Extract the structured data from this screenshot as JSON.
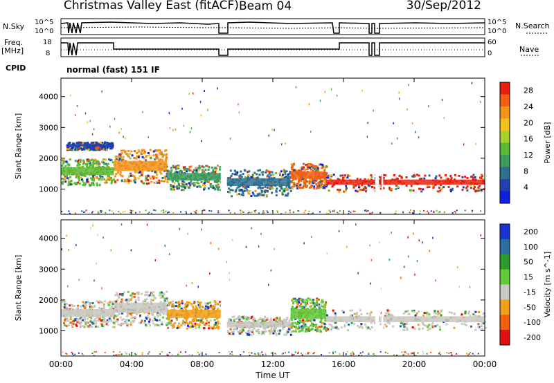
{
  "header": {
    "title": "Christmas Valley East (fitACF)",
    "beam": "Beam 04",
    "date": "30/Sep/2012"
  },
  "panels": {
    "nsky_label": "N.Sky",
    "nsky_ticks": [
      "10^5",
      "10^0"
    ],
    "nsearch_label": "N.Search",
    "nsearch_ticks": [
      "10^5",
      "10^0"
    ],
    "freq_label": "Freq.",
    "freq_unit": "[MHz]",
    "freq_ticks": [
      "18",
      "8"
    ],
    "nave_label": "Nave",
    "nave_ticks": [
      "60",
      "0"
    ],
    "cpid_label": "CPID",
    "cpid_value": "normal (fast) 151 IF"
  },
  "chart_data": [
    {
      "type": "heatmap",
      "name": "power",
      "ylabel": "Slant Range [km]",
      "xlabel": "Time UT",
      "x_ticks": [
        "00:00",
        "04:00",
        "08:00",
        "12:00",
        "16:00",
        "20:00",
        "00:00"
      ],
      "y_ticks": [
        1000,
        2000,
        3000,
        4000
      ],
      "ylim": [
        180,
        4600
      ],
      "xlim_hours": [
        0,
        24
      ],
      "colorbar": {
        "label": "Power [dB]",
        "ticks": [
          4,
          8,
          12,
          16,
          20,
          24,
          28
        ],
        "range": [
          0,
          30
        ],
        "colors": [
          "#1020e0",
          "#2040b0",
          "#2e6e8e",
          "#3c9a5c",
          "#59b934",
          "#a5d12a",
          "#f0c01c",
          "#f39318",
          "#f25f14",
          "#e81e10"
        ]
      },
      "bands": [
        {
          "t_start": 0.0,
          "t_end": 3.0,
          "r_start": 1150,
          "r_end": 2000,
          "color": "#59b934"
        },
        {
          "t_start": 0.3,
          "t_end": 2.9,
          "r_start": 2300,
          "r_end": 2550,
          "color": "#2040b0"
        },
        {
          "t_start": 3.0,
          "t_end": 6.0,
          "r_start": 1200,
          "r_end": 2300,
          "color": "#f39318"
        },
        {
          "t_start": 6.0,
          "t_end": 9.1,
          "r_start": 1000,
          "r_end": 1800,
          "color": "#3c9a5c"
        },
        {
          "t_start": 9.4,
          "t_end": 13.0,
          "r_start": 800,
          "r_end": 1650,
          "color": "#2e6e8e"
        },
        {
          "t_start": 13.0,
          "t_end": 15.0,
          "r_start": 1050,
          "r_end": 1850,
          "color": "#f25f14"
        },
        {
          "t_start": 15.0,
          "t_end": 24.0,
          "r_start": 950,
          "r_end": 1500,
          "color": "#e81e10"
        }
      ],
      "data_gaps_hours": [
        [
          9.05,
          9.35
        ],
        [
          17.8,
          18.0
        ],
        [
          18.15,
          18.25
        ]
      ]
    },
    {
      "type": "heatmap",
      "name": "velocity",
      "ylabel": "Slant Range [km]",
      "xlabel": "Time UT",
      "x_ticks": [
        "00:00",
        "04:00",
        "08:00",
        "12:00",
        "16:00",
        "20:00",
        "00:00"
      ],
      "y_ticks": [
        1000,
        2000,
        3000,
        4000
      ],
      "ylim": [
        180,
        4600
      ],
      "xlim_hours": [
        0,
        24
      ],
      "colorbar": {
        "label": "Velocity [m s^-1]",
        "ticks": [
          200,
          100,
          50,
          15,
          -15,
          -50,
          -100,
          -200
        ],
        "colors": [
          "#1a32d0",
          "#2a6ea0",
          "#2a9a2a",
          "#62c93a",
          "#c8c8c0",
          "#f0a018",
          "#f06010",
          "#e01010"
        ]
      },
      "bands": [
        {
          "t_start": 0.0,
          "t_end": 3.0,
          "r_start": 1150,
          "r_end": 2000,
          "color": "#c8c8c0"
        },
        {
          "t_start": 3.0,
          "t_end": 6.0,
          "r_start": 1200,
          "r_end": 2300,
          "color": "#c8c8c0"
        },
        {
          "t_start": 6.0,
          "t_end": 9.1,
          "r_start": 1100,
          "r_end": 2000,
          "color": "#f0a018"
        },
        {
          "t_start": 9.4,
          "t_end": 13.0,
          "r_start": 900,
          "r_end": 1500,
          "color": "#c8c8c0"
        },
        {
          "t_start": 13.0,
          "t_end": 15.0,
          "r_start": 1000,
          "r_end": 2100,
          "color": "#62c93a"
        },
        {
          "t_start": 15.0,
          "t_end": 24.0,
          "r_start": 1050,
          "r_end": 1700,
          "color": "#c8c8c0"
        }
      ]
    }
  ]
}
